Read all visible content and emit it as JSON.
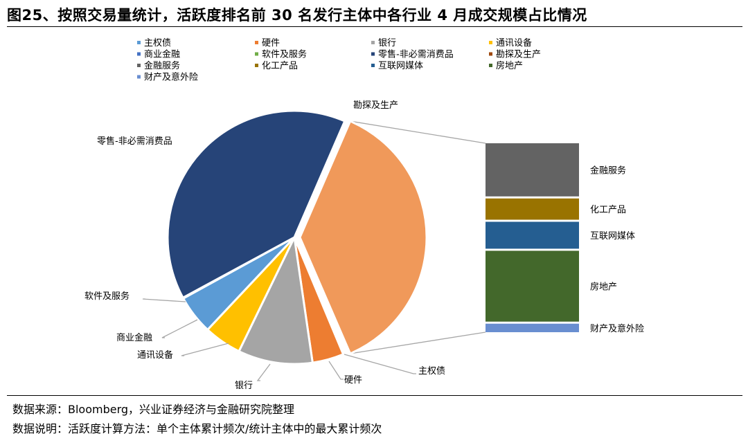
{
  "page": {
    "title": "图25、按照交易量统计，活跃度排名前 30 名发行主体中各行业 4 月成交规模占比情况",
    "footnote_source": "数据来源：Bloomberg，兴业证券经济与金融研究院整理",
    "footnote_note": "数据说明：活跃度计算方法：单个主体累计频次/统计主体中的最大累计频次"
  },
  "chart_data": {
    "type": "pie",
    "subtype": "bar-of-pie",
    "title": "",
    "legend_position": "top",
    "main_pie": {
      "slices": [
        {
          "name": "主权债",
          "value": 0.2,
          "color": "#5b9bd5"
        },
        {
          "name": "硬件",
          "value": 4.0,
          "color": "#ed7d31"
        },
        {
          "name": "银行",
          "value": 9.5,
          "color": "#a5a5a5"
        },
        {
          "name": "通讯设备",
          "value": 4.8,
          "color": "#ffc000"
        },
        {
          "name": "商业金融",
          "value": 5.0,
          "color": "#5b9bd5"
        },
        {
          "name": "软件及服务",
          "value": 0.1,
          "color": "#70ad47"
        },
        {
          "name": "零售-非必需消费品",
          "value": 39.4,
          "color": "#264478"
        },
        {
          "name": "勘探及生产",
          "value": 37.0,
          "color": "#f0995a"
        }
      ]
    },
    "secondary_bar": {
      "parent": "勘探及生产",
      "segments": [
        {
          "name": "金融服务",
          "value": 7.5,
          "color": "#636363"
        },
        {
          "name": "化工产品",
          "value": 3.0,
          "color": "#997300"
        },
        {
          "name": "互联网媒体",
          "value": 3.8,
          "color": "#255e91"
        },
        {
          "name": "房地产",
          "value": 10.0,
          "color": "#43682b"
        },
        {
          "name": "财产及意外险",
          "value": 1.2,
          "color": "#698ed0"
        }
      ]
    },
    "legend": [
      {
        "name": "主权债",
        "color": "#5b9bd5"
      },
      {
        "name": "硬件",
        "color": "#ed7d31"
      },
      {
        "name": "银行",
        "color": "#a5a5a5"
      },
      {
        "name": "通讯设备",
        "color": "#ffc000"
      },
      {
        "name": "商业金融",
        "color": "#4472c4"
      },
      {
        "name": "软件及服务",
        "color": "#70ad47"
      },
      {
        "name": "零售-非必需消费品",
        "color": "#264478"
      },
      {
        "name": "勘探及生产",
        "color": "#9e480e"
      },
      {
        "name": "金融服务",
        "color": "#636363"
      },
      {
        "name": "化工产品",
        "color": "#997300"
      },
      {
        "name": "互联网媒体",
        "color": "#255e91"
      },
      {
        "name": "房地产",
        "color": "#43682b"
      },
      {
        "name": "财产及意外险",
        "color": "#698ed0"
      }
    ]
  }
}
